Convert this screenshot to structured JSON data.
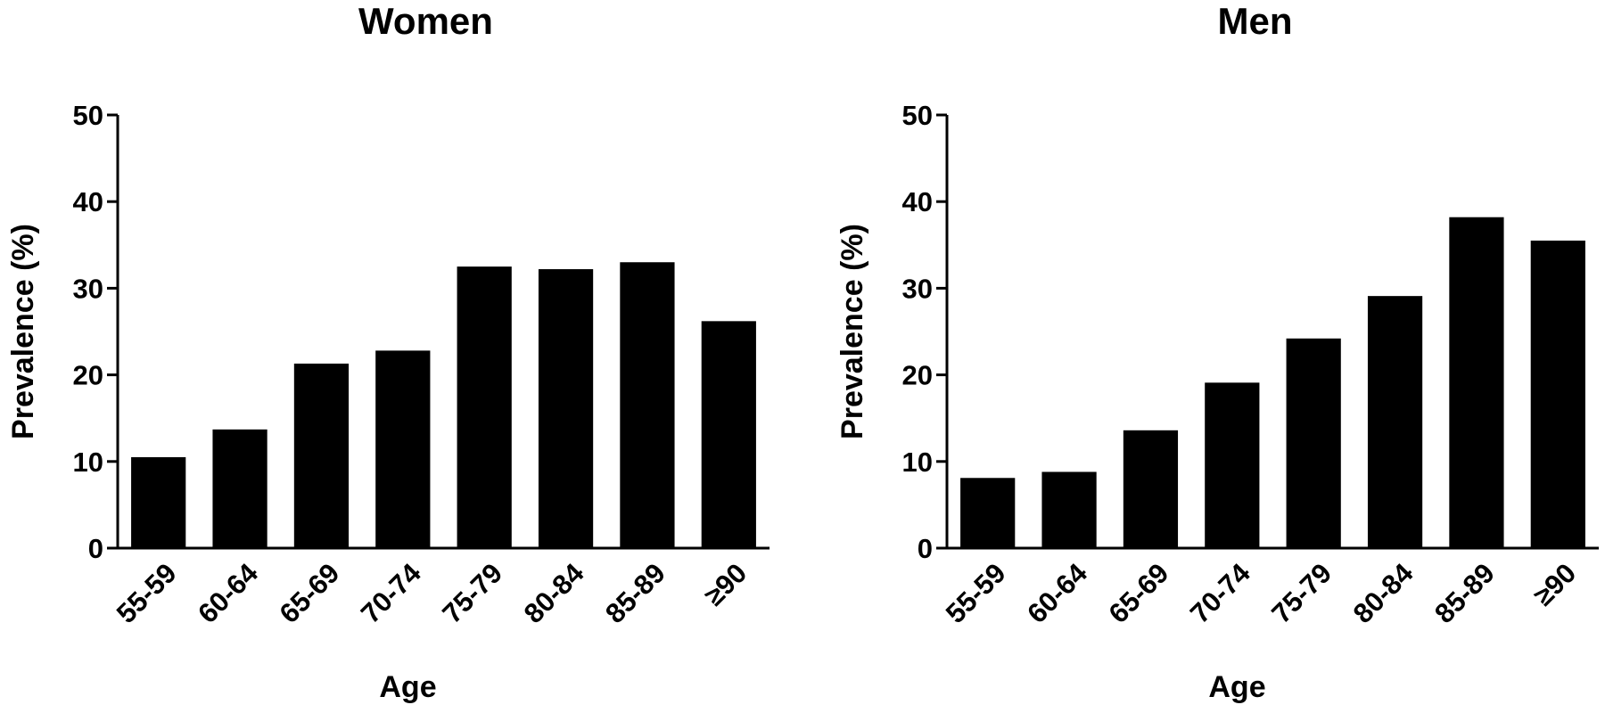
{
  "chart_data": [
    {
      "type": "bar",
      "title": "Women",
      "x_label": "Age",
      "y_label": "Prevalence (%)",
      "categories": [
        "55-59",
        "60-64",
        "65-69",
        "70-74",
        "75-79",
        "80-84",
        "85-89",
        "≥90"
      ],
      "values": [
        10.5,
        13.7,
        21.3,
        22.8,
        32.5,
        32.2,
        33.0,
        26.2
      ],
      "color": "#000000",
      "ylim": [
        0,
        50
      ],
      "yticks": [
        0,
        10,
        20,
        30,
        40,
        50
      ]
    },
    {
      "type": "bar",
      "title": "Men",
      "x_label": "Age",
      "y_label": "Prevalence (%)",
      "categories": [
        "55-59",
        "60-64",
        "65-69",
        "70-74",
        "75-79",
        "80-84",
        "85-89",
        "≥90"
      ],
      "values": [
        8.1,
        8.8,
        13.6,
        19.1,
        24.2,
        29.1,
        38.2,
        35.5
      ],
      "color": "#000000",
      "ylim": [
        0,
        50
      ],
      "yticks": [
        0,
        10,
        20,
        30,
        40,
        50
      ]
    }
  ]
}
